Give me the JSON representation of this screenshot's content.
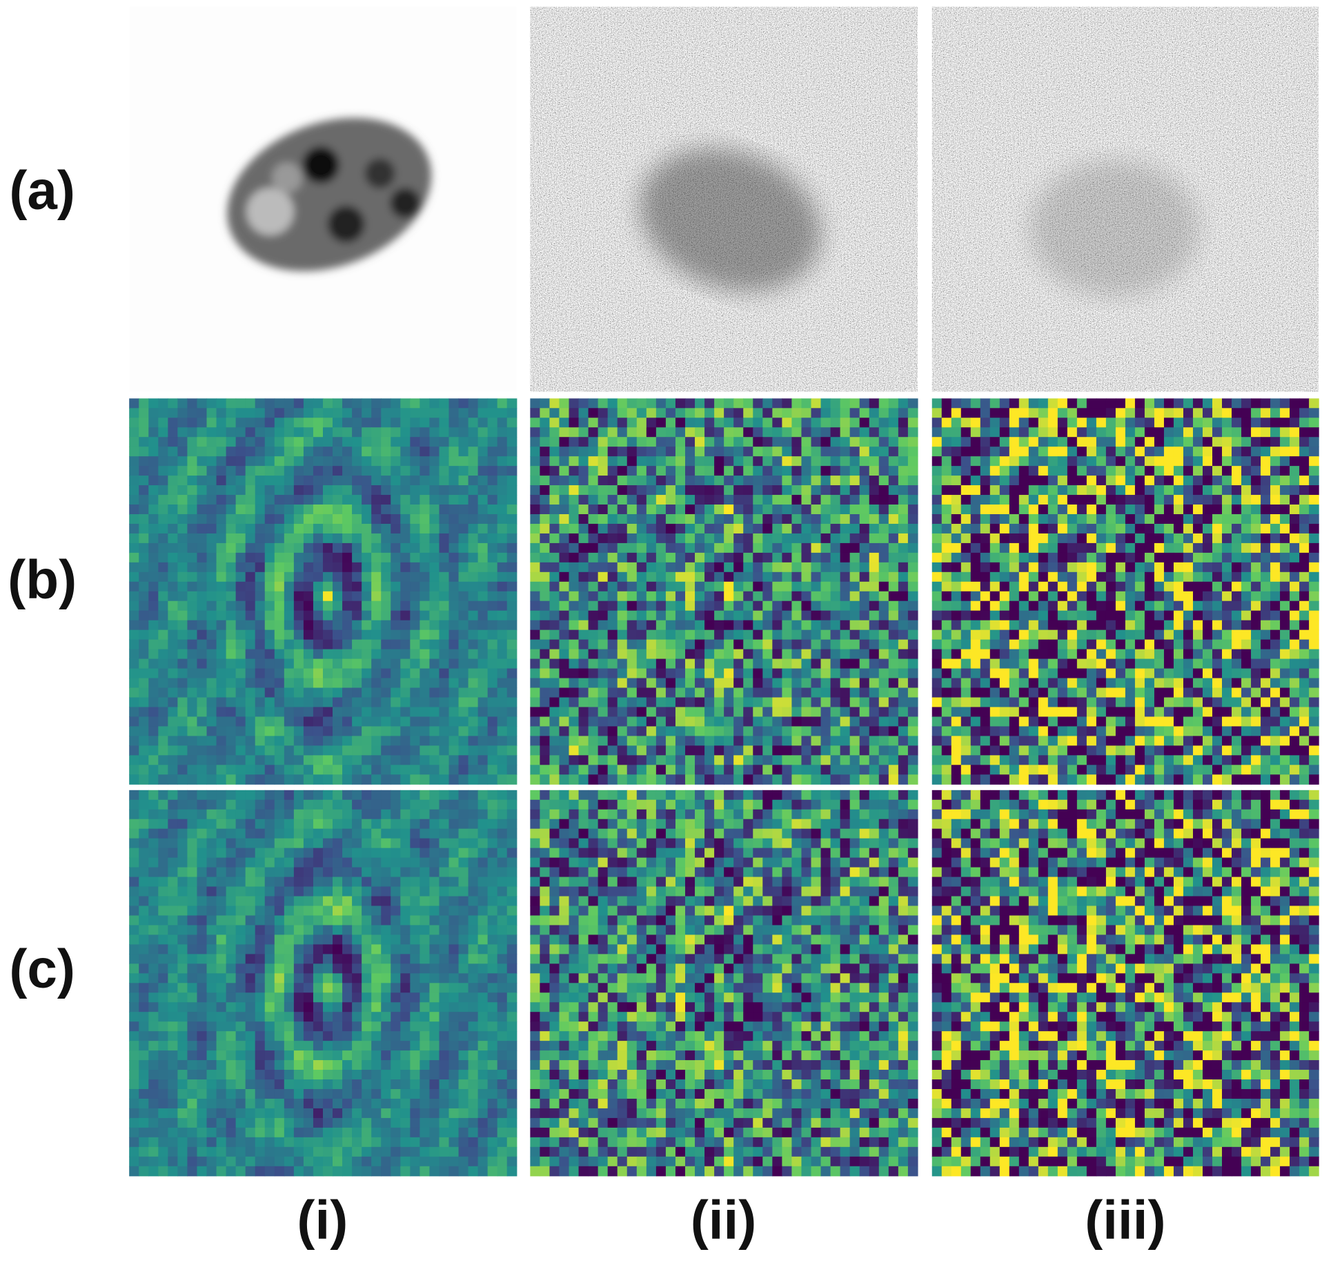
{
  "row_labels": [
    "(a)",
    "(b)",
    "(c)"
  ],
  "column_labels": [
    "(i)",
    "(ii)",
    "(iii)"
  ]
}
